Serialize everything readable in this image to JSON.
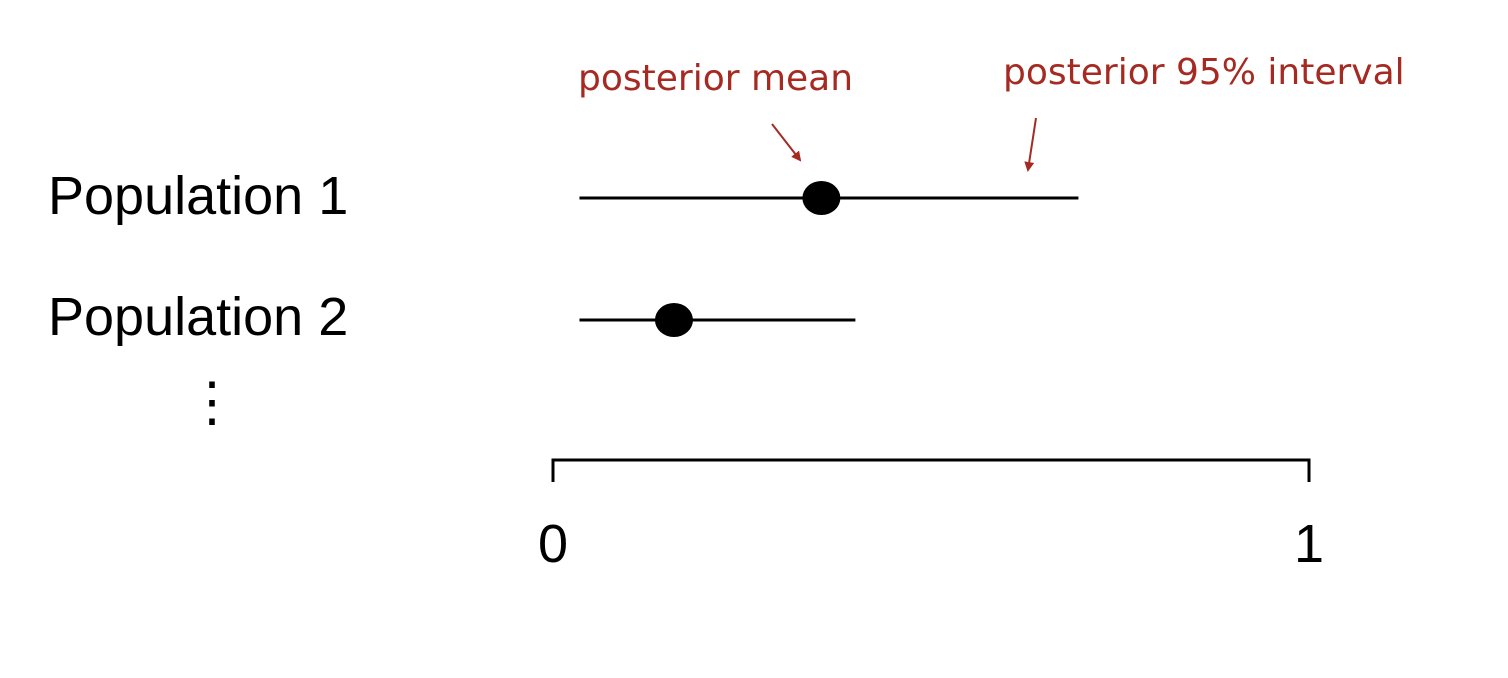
{
  "chart_data": {
    "type": "forest",
    "xlim": [
      0,
      1
    ],
    "grid": false,
    "x_tick_labels": [
      "0",
      "1"
    ],
    "x_ticks": [
      0,
      1
    ],
    "rows": [
      {
        "label": "Population 1",
        "mean": 0.355,
        "lower": 0.035,
        "upper": 0.695
      },
      {
        "label": "Population 2",
        "mean": 0.16,
        "lower": 0.035,
        "upper": 0.4
      }
    ],
    "continuation": "⋮",
    "annotations": [
      {
        "text": "posterior mean",
        "points_to": "Population 1 mean"
      },
      {
        "text": "posterior 95% interval",
        "points_to": "Population 1 interval"
      }
    ],
    "colors": {
      "marks": "#000000",
      "annotation": "#a52a22"
    }
  }
}
